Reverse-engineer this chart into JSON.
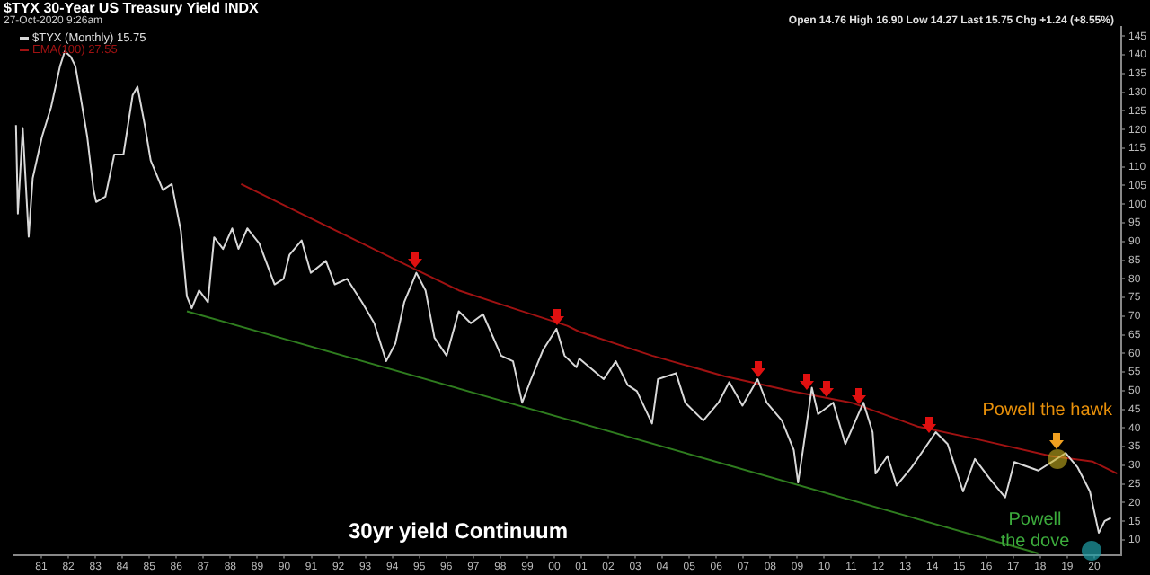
{
  "chart_data": {
    "type": "line",
    "title": "$TYX 30-Year US Treasury Yield INDX",
    "subtitle": "27-Oct-2020 9:26am",
    "annotations": [
      "Open 14.76 High 16.90 Low 14.27 Last 15.75 Chg +1.24 (+8.55%)",
      "30yr yield Continuum",
      "Powell the hawk",
      "Powell\nthe dove"
    ],
    "series": [
      {
        "name": "$TYX (Monthly) 15.75",
        "color": "#d8d8d8",
        "x": [
          1980.06,
          1980.13,
          1980.31,
          1980.53,
          1980.68,
          1981.02,
          1981.36,
          1981.69,
          1981.87,
          1982.09,
          1982.26,
          1982.48,
          1982.7,
          1982.93,
          1983.03,
          1983.37,
          1983.7,
          1984.04,
          1984.38,
          1984.56,
          1984.83,
          1985.05,
          1985.5,
          1985.83,
          1986.17,
          1986.39,
          1986.57,
          1986.84,
          1987.17,
          1987.4,
          1987.73,
          1988.07,
          1988.3,
          1988.63,
          1989.07,
          1989.64,
          1989.97,
          1990.19,
          1990.64,
          1990.98,
          1991.54,
          1991.87,
          1992.32,
          1992.88,
          1993.33,
          1993.77,
          1994.11,
          1994.44,
          1994.89,
          1995.23,
          1995.56,
          1996.01,
          1996.46,
          1996.91,
          1997.36,
          1998.03,
          1998.47,
          1998.81,
          1999.14,
          1999.59,
          2000.08,
          2000.38,
          2000.82,
          2000.93,
          2001.83,
          2002.28,
          2002.72,
          2003.06,
          2003.62,
          2003.84,
          2004.51,
          2004.85,
          2005.52,
          2006.08,
          2006.48,
          2006.97,
          2007.53,
          2007.87,
          2008.43,
          2008.87,
          2009.03,
          2009.21,
          2009.54,
          2009.77,
          2010.33,
          2010.78,
          2011.45,
          2011.79,
          2011.9,
          2012.34,
          2012.68,
          2013.23,
          2014.13,
          2014.57,
          2015.14,
          2015.58,
          2016.15,
          2016.7,
          2017.04,
          2017.93,
          2018.6,
          2018.94,
          2019.39,
          2019.84,
          2020.17,
          2020.39,
          2020.62
        ],
        "values": [
          121.2,
          97.5,
          120.4,
          91.3,
          107,
          118,
          126,
          137,
          141,
          139.5,
          137,
          127.6,
          118,
          103.8,
          100.6,
          102,
          113.3,
          113.3,
          129.2,
          131.5,
          121.2,
          111.7,
          103.8,
          105.4,
          92.7,
          75.3,
          72.1,
          76.9,
          73.7,
          91.1,
          88,
          93.5,
          88,
          93.5,
          89.5,
          78.5,
          80,
          86.4,
          90.3,
          81.6,
          84.8,
          78.5,
          80,
          73.7,
          68.1,
          57.9,
          62.6,
          73.7,
          81.6,
          76.9,
          64.2,
          59.4,
          71.3,
          68.1,
          70.5,
          59.4,
          57.9,
          46.8,
          53.1,
          61,
          66.6,
          59.4,
          56.3,
          58.6,
          53.1,
          57.9,
          51.5,
          49.9,
          41.2,
          53.1,
          54.7,
          46.8,
          42,
          46.8,
          52.3,
          46,
          53.1,
          46.8,
          42,
          34.1,
          25.4,
          34.1,
          50.8,
          43.7,
          46.8,
          35.7,
          46.8,
          38.9,
          27.8,
          32.5,
          24.6,
          29.4,
          38.9,
          35.7,
          23,
          31.7,
          26.2,
          21.4,
          30.9,
          28.6,
          31.7,
          33.3,
          29.4,
          23,
          11.9,
          15.1,
          15.9
        ]
      },
      {
        "name": "EMA(100) 27.55",
        "color": "#a01212",
        "x": [
          1988.4,
          1990.19,
          1992.88,
          1994.89,
          1996.46,
          1998.47,
          2000.48,
          2000.93,
          2003.62,
          2006.3,
          2008.77,
          2011.01,
          2013.46,
          2015.48,
          2018.38,
          2019.95,
          2020.85
        ],
        "values": [
          105.4,
          99,
          89.5,
          82.4,
          76.9,
          72.1,
          67.4,
          65.8,
          59.4,
          53.9,
          49.9,
          46.8,
          40.4,
          37.3,
          32.5,
          31,
          27.8
        ]
      },
      {
        "color": "#2f7d1f",
        "x": [
          1986.39,
          2017.93
        ],
        "values": [
          71.3,
          6.4
        ]
      }
    ],
    "xlim": [
      1980,
      2021
    ],
    "xticks": [
      {
        "value": 1981,
        "label": "81"
      },
      {
        "value": 1982,
        "label": "82"
      },
      {
        "value": 1983,
        "label": "83"
      },
      {
        "value": 1984,
        "label": "84"
      },
      {
        "value": 1985,
        "label": "85"
      },
      {
        "value": 1986,
        "label": "86"
      },
      {
        "value": 1987,
        "label": "87"
      },
      {
        "value": 1988,
        "label": "88"
      },
      {
        "value": 1989,
        "label": "89"
      },
      {
        "value": 1990,
        "label": "90"
      },
      {
        "value": 1991,
        "label": "91"
      },
      {
        "value": 1992,
        "label": "92"
      },
      {
        "value": 1993,
        "label": "93"
      },
      {
        "value": 1994,
        "label": "94"
      },
      {
        "value": 1995,
        "label": "95"
      },
      {
        "value": 1996,
        "label": "96"
      },
      {
        "value": 1997,
        "label": "97"
      },
      {
        "value": 1998,
        "label": "98"
      },
      {
        "value": 1999,
        "label": "99"
      },
      {
        "value": 2000,
        "label": "00"
      },
      {
        "value": 2001,
        "label": "01"
      },
      {
        "value": 2002,
        "label": "02"
      },
      {
        "value": 2003,
        "label": "03"
      },
      {
        "value": 2004,
        "label": "04"
      },
      {
        "value": 2005,
        "label": "05"
      },
      {
        "value": 2006,
        "label": "06"
      },
      {
        "value": 2007,
        "label": "07"
      },
      {
        "value": 2008,
        "label": "08"
      },
      {
        "value": 2009,
        "label": "09"
      },
      {
        "value": 2010,
        "label": "10"
      },
      {
        "value": 2011,
        "label": "11"
      },
      {
        "value": 2012,
        "label": "12"
      },
      {
        "value": 2013,
        "label": "13"
      },
      {
        "value": 2014,
        "label": "14"
      },
      {
        "value": 2015,
        "label": "15"
      },
      {
        "value": 2016,
        "label": "16"
      },
      {
        "value": 2017,
        "label": "17"
      },
      {
        "value": 2018,
        "label": "18"
      },
      {
        "value": 2019,
        "label": "19"
      },
      {
        "value": 2020,
        "label": "20"
      }
    ],
    "ylim": [
      6,
      147.5
    ],
    "yticks": [
      10,
      15,
      20,
      25,
      30,
      35,
      40,
      45,
      50,
      55,
      60,
      65,
      70,
      75,
      80,
      85,
      90,
      95,
      100,
      105,
      110,
      115,
      120,
      125,
      130,
      135,
      140,
      145
    ],
    "grid": false,
    "legend": "top left",
    "marker": "none",
    "line_style": "solid"
  }
}
